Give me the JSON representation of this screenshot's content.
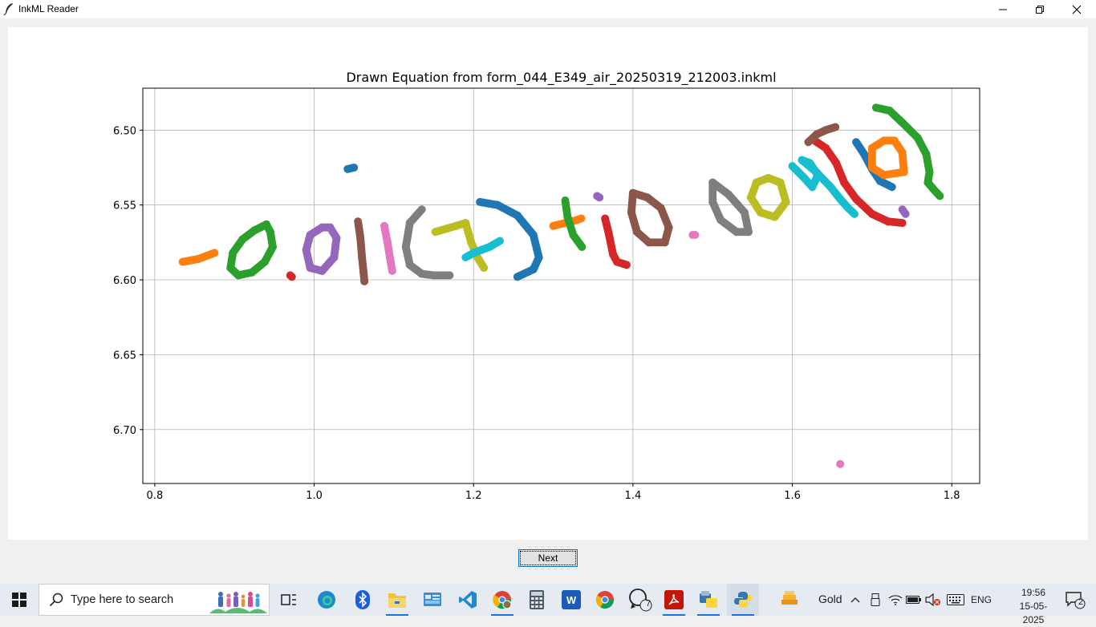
{
  "window": {
    "title": "InkML Reader",
    "controls": [
      "minimize",
      "maximize",
      "close"
    ]
  },
  "chart_data": {
    "type": "scatter",
    "title": "Drawn Equation from form_044_E349_air_20250319_212003.inkml",
    "xlabel": "",
    "ylabel": "",
    "xlim": [
      0.785,
      1.835
    ],
    "ylim": [
      6.736,
      6.472
    ],
    "y_inverted": true,
    "grid": true,
    "x_ticks": [
      0.8,
      1.0,
      1.2,
      1.4,
      1.6,
      1.8
    ],
    "x_tick_labels": [
      "0.8",
      "1.0",
      "1.2",
      "1.4",
      "1.6",
      "1.8"
    ],
    "y_ticks": [
      6.5,
      6.55,
      6.6,
      6.65,
      6.7
    ],
    "y_tick_labels": [
      "6.50",
      "6.55",
      "6.60",
      "6.65",
      "6.70"
    ],
    "series": [
      {
        "color": "#ff7f0e",
        "points": [
          [
            0.835,
            6.588
          ],
          [
            0.845,
            6.587
          ],
          [
            0.855,
            6.586
          ],
          [
            0.865,
            6.584
          ],
          [
            0.875,
            6.582
          ]
        ]
      },
      {
        "color": "#2ca02c",
        "points": [
          [
            0.94,
            6.563
          ],
          [
            0.925,
            6.567
          ],
          [
            0.91,
            6.573
          ],
          [
            0.898,
            6.582
          ],
          [
            0.895,
            6.592
          ],
          [
            0.905,
            6.597
          ],
          [
            0.922,
            6.595
          ],
          [
            0.938,
            6.588
          ],
          [
            0.948,
            6.578
          ],
          [
            0.945,
            6.568
          ],
          [
            0.94,
            6.563
          ]
        ]
      },
      {
        "color": "#d62728",
        "points": [
          [
            0.97,
            6.597
          ],
          [
            0.972,
            6.598
          ]
        ]
      },
      {
        "color": "#9467bd",
        "points": [
          [
            1.01,
            6.565
          ],
          [
            0.995,
            6.57
          ],
          [
            0.99,
            6.58
          ],
          [
            0.995,
            6.592
          ],
          [
            1.01,
            6.594
          ],
          [
            1.025,
            6.585
          ],
          [
            1.028,
            6.572
          ],
          [
            1.02,
            6.565
          ],
          [
            1.01,
            6.565
          ]
        ]
      },
      {
        "color": "#1f77b4",
        "points": [
          [
            1.042,
            6.526
          ],
          [
            1.05,
            6.525
          ]
        ]
      },
      {
        "color": "#8c564b",
        "points": [
          [
            1.055,
            6.561
          ],
          [
            1.058,
            6.572
          ],
          [
            1.06,
            6.585
          ],
          [
            1.062,
            6.595
          ],
          [
            1.063,
            6.601
          ]
        ]
      },
      {
        "color": "#e377c2",
        "points": [
          [
            1.088,
            6.564
          ],
          [
            1.092,
            6.575
          ],
          [
            1.095,
            6.585
          ],
          [
            1.098,
            6.594
          ]
        ]
      },
      {
        "color": "#7f7f7f",
        "points": [
          [
            1.135,
            6.553
          ],
          [
            1.12,
            6.562
          ],
          [
            1.115,
            6.578
          ],
          [
            1.12,
            6.59
          ],
          [
            1.135,
            6.596
          ],
          [
            1.15,
            6.597
          ],
          [
            1.17,
            6.597
          ]
        ]
      },
      {
        "color": "#bcbd22",
        "points": [
          [
            1.152,
            6.568
          ],
          [
            1.165,
            6.566
          ],
          [
            1.178,
            6.564
          ],
          [
            1.19,
            6.562
          ],
          [
            1.197,
            6.575
          ],
          [
            1.205,
            6.585
          ],
          [
            1.213,
            6.592
          ]
        ]
      },
      {
        "color": "#17becf",
        "points": [
          [
            1.19,
            6.585
          ],
          [
            1.2,
            6.582
          ],
          [
            1.21,
            6.58
          ],
          [
            1.22,
            6.578
          ],
          [
            1.233,
            6.574
          ]
        ]
      },
      {
        "color": "#1f77b4",
        "points": [
          [
            1.208,
            6.548
          ],
          [
            1.23,
            6.55
          ],
          [
            1.255,
            6.557
          ],
          [
            1.275,
            6.57
          ],
          [
            1.282,
            6.585
          ],
          [
            1.275,
            6.593
          ],
          [
            1.255,
            6.598
          ]
        ]
      },
      {
        "color": "#ff7f0e",
        "points": [
          [
            1.3,
            6.564
          ],
          [
            1.315,
            6.562
          ],
          [
            1.33,
            6.56
          ],
          [
            1.335,
            6.559
          ]
        ]
      },
      {
        "color": "#2ca02c",
        "points": [
          [
            1.315,
            6.547
          ],
          [
            1.318,
            6.558
          ],
          [
            1.325,
            6.57
          ],
          [
            1.336,
            6.578
          ]
        ]
      },
      {
        "color": "#9467bd",
        "points": [
          [
            1.355,
            6.544
          ],
          [
            1.358,
            6.545
          ]
        ]
      },
      {
        "color": "#d62728",
        "points": [
          [
            1.365,
            6.559
          ],
          [
            1.37,
            6.57
          ],
          [
            1.375,
            6.583
          ],
          [
            1.38,
            6.588
          ],
          [
            1.392,
            6.59
          ]
        ]
      },
      {
        "color": "#8c564b",
        "points": [
          [
            1.4,
            6.542
          ],
          [
            1.398,
            6.555
          ],
          [
            1.405,
            6.568
          ],
          [
            1.42,
            6.575
          ],
          [
            1.44,
            6.575
          ],
          [
            1.445,
            6.565
          ],
          [
            1.435,
            6.552
          ],
          [
            1.418,
            6.545
          ],
          [
            1.4,
            6.542
          ]
        ]
      },
      {
        "color": "#e377c2",
        "points": [
          [
            1.475,
            6.57
          ],
          [
            1.478,
            6.57
          ]
        ]
      },
      {
        "color": "#7f7f7f",
        "points": [
          [
            1.5,
            6.535
          ],
          [
            1.5,
            6.548
          ],
          [
            1.51,
            6.56
          ],
          [
            1.53,
            6.568
          ],
          [
            1.545,
            6.568
          ],
          [
            1.54,
            6.555
          ],
          [
            1.52,
            6.543
          ],
          [
            1.5,
            6.535
          ]
        ]
      },
      {
        "color": "#bcbd22",
        "points": [
          [
            1.555,
            6.535
          ],
          [
            1.548,
            6.545
          ],
          [
            1.56,
            6.555
          ],
          [
            1.578,
            6.558
          ],
          [
            1.592,
            6.548
          ],
          [
            1.585,
            6.535
          ],
          [
            1.57,
            6.532
          ],
          [
            1.555,
            6.535
          ]
        ]
      },
      {
        "color": "#17becf",
        "points": [
          [
            1.6,
            6.524
          ],
          [
            1.615,
            6.532
          ],
          [
            1.625,
            6.538
          ],
          [
            1.632,
            6.53
          ],
          [
            1.622,
            6.522
          ],
          [
            1.612,
            6.52
          ],
          [
            1.63,
            6.528
          ],
          [
            1.648,
            6.538
          ],
          [
            1.66,
            6.546
          ],
          [
            1.67,
            6.552
          ],
          [
            1.678,
            6.556
          ]
        ]
      },
      {
        "color": "#d62728",
        "points": [
          [
            1.625,
            6.506
          ],
          [
            1.642,
            6.512
          ],
          [
            1.655,
            6.522
          ],
          [
            1.665,
            6.535
          ],
          [
            1.68,
            6.546
          ],
          [
            1.7,
            6.556
          ],
          [
            1.72,
            6.561
          ],
          [
            1.738,
            6.562
          ]
        ]
      },
      {
        "color": "#8c564b",
        "points": [
          [
            1.62,
            6.508
          ],
          [
            1.63,
            6.503
          ],
          [
            1.642,
            6.5
          ],
          [
            1.654,
            6.498
          ]
        ]
      },
      {
        "color": "#1f77b4",
        "points": [
          [
            1.68,
            6.508
          ],
          [
            1.69,
            6.516
          ],
          [
            1.7,
            6.526
          ],
          [
            1.71,
            6.534
          ],
          [
            1.725,
            6.538
          ]
        ]
      },
      {
        "color": "#ff7f0e",
        "points": [
          [
            1.715,
            6.507
          ],
          [
            1.7,
            6.512
          ],
          [
            1.7,
            6.525
          ],
          [
            1.715,
            6.53
          ],
          [
            1.74,
            6.528
          ],
          [
            1.738,
            6.515
          ],
          [
            1.728,
            6.507
          ],
          [
            1.715,
            6.507
          ]
        ]
      },
      {
        "color": "#2ca02c",
        "points": [
          [
            1.705,
            6.485
          ],
          [
            1.722,
            6.487
          ],
          [
            1.738,
            6.495
          ],
          [
            1.757,
            6.505
          ],
          [
            1.768,
            6.516
          ],
          [
            1.772,
            6.528
          ],
          [
            1.77,
            6.535
          ],
          [
            1.778,
            6.54
          ],
          [
            1.785,
            6.544
          ]
        ]
      },
      {
        "color": "#9467bd",
        "points": [
          [
            1.738,
            6.553
          ],
          [
            1.742,
            6.556
          ]
        ]
      },
      {
        "color": "#e377c2",
        "points": [
          [
            1.66,
            6.723
          ]
        ]
      }
    ]
  },
  "next_button": {
    "label": "Next"
  },
  "taskbar": {
    "search_placeholder": "Type here to search",
    "pinned": [
      {
        "name": "task-view-icon"
      },
      {
        "name": "edge-icon"
      },
      {
        "name": "bluetooth-icon"
      },
      {
        "name": "file-explorer-icon"
      },
      {
        "name": "control-panel-icon"
      },
      {
        "name": "vscode-icon"
      },
      {
        "name": "chrome-profile-icon"
      },
      {
        "name": "calculator-icon"
      },
      {
        "name": "word-icon"
      },
      {
        "name": "chrome-icon"
      },
      {
        "name": "whatsapp-icon",
        "badge": "7"
      },
      {
        "name": "acrobat-icon"
      },
      {
        "name": "python-idle-icon"
      },
      {
        "name": "python-icon"
      }
    ],
    "gold_label": "Gold",
    "language": "ENG",
    "time": "19:56",
    "date": "15-05-2025",
    "notification_count": "2"
  }
}
